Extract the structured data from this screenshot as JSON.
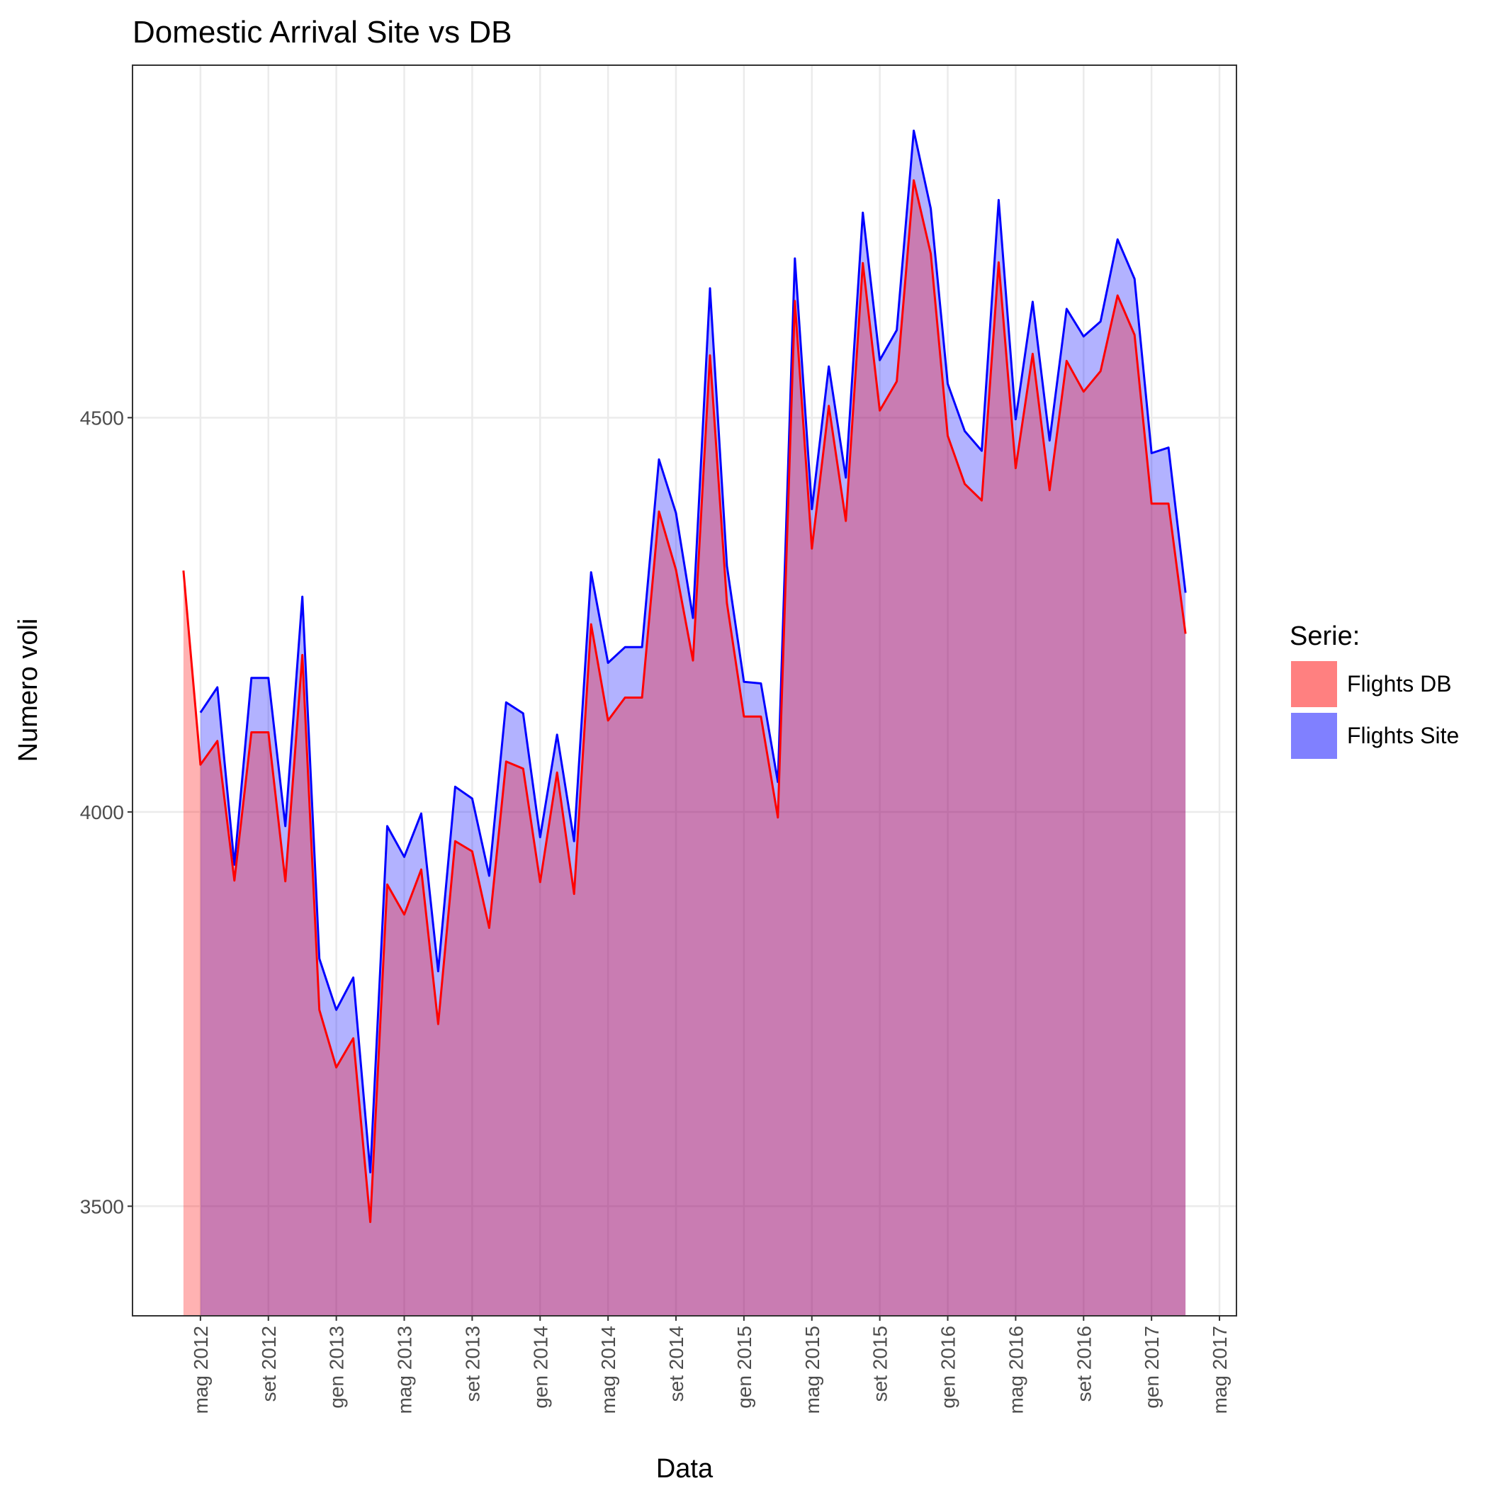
{
  "chart_data": {
    "type": "area",
    "title": "Domestic Arrival Site vs DB",
    "x_label": "Data",
    "y_label": "Numero voli",
    "legend_title": "Serie:",
    "legend": "right",
    "grid": true,
    "x": [
      "2012-04",
      "2012-05",
      "2012-06",
      "2012-07",
      "2012-08",
      "2012-09",
      "2012-10",
      "2012-11",
      "2012-12",
      "2013-01",
      "2013-02",
      "2013-03",
      "2013-04",
      "2013-05",
      "2013-06",
      "2013-07",
      "2013-08",
      "2013-09",
      "2013-10",
      "2013-11",
      "2013-12",
      "2014-01",
      "2014-02",
      "2014-03",
      "2014-04",
      "2014-05",
      "2014-06",
      "2014-07",
      "2014-08",
      "2014-09",
      "2014-10",
      "2014-11",
      "2014-12",
      "2015-01",
      "2015-02",
      "2015-03",
      "2015-04",
      "2015-05",
      "2015-06",
      "2015-07",
      "2015-08",
      "2015-09",
      "2015-10",
      "2015-11",
      "2015-12",
      "2016-01",
      "2016-02",
      "2016-03",
      "2016-04",
      "2016-05",
      "2016-06",
      "2016-07",
      "2016-08",
      "2016-09",
      "2016-10",
      "2016-11",
      "2016-12",
      "2017-01",
      "2017-02",
      "2017-03"
    ],
    "series": [
      {
        "name": "Flights DB",
        "color": "red",
        "fill": "#ff8080",
        "values": [
          4306,
          4060,
          4090,
          3913,
          4101,
          4101,
          3912,
          4199,
          3749,
          3676,
          3713,
          3480,
          3908,
          3870,
          3927,
          3731,
          3963,
          3950,
          3853,
          4064,
          4055,
          3911,
          4050,
          3896,
          4238,
          4116,
          4145,
          4145,
          4381,
          4307,
          4192,
          4579,
          4265,
          4121,
          4121,
          3993,
          4648,
          4334,
          4515,
          4369,
          4696,
          4509,
          4546,
          4801,
          4708,
          4477,
          4416,
          4395,
          4697,
          4436,
          4581,
          4408,
          4572,
          4533,
          4559,
          4655,
          4605,
          4391,
          4391,
          4226
        ]
      },
      {
        "name": "Flights Site",
        "color": "blue",
        "fill": "#8080ff",
        "values": [
          null,
          4126,
          4158,
          3933,
          4170,
          4170,
          3982,
          4273,
          3814,
          3749,
          3790,
          3543,
          3982,
          3943,
          3998,
          3798,
          4032,
          4017,
          3919,
          4139,
          4125,
          3968,
          4098,
          3963,
          4304,
          4189,
          4209,
          4209,
          4447,
          4379,
          4246,
          4664,
          4312,
          4165,
          4163,
          4038,
          4702,
          4384,
          4565,
          4424,
          4760,
          4573,
          4611,
          4864,
          4765,
          4543,
          4483,
          4458,
          4776,
          4498,
          4647,
          4471,
          4638,
          4603,
          4622,
          4726,
          4676,
          4455,
          4462,
          4278
        ]
      }
    ],
    "xlim": [
      "2012-01",
      "2017-06"
    ],
    "xticks": [
      {
        "value": "2012-05",
        "label": "mag 2012"
      },
      {
        "value": "2012-09",
        "label": "set 2012"
      },
      {
        "value": "2013-01",
        "label": "gen 2013"
      },
      {
        "value": "2013-05",
        "label": "mag 2013"
      },
      {
        "value": "2013-09",
        "label": "set 2013"
      },
      {
        "value": "2014-01",
        "label": "gen 2014"
      },
      {
        "value": "2014-05",
        "label": "mag 2014"
      },
      {
        "value": "2014-09",
        "label": "set 2014"
      },
      {
        "value": "2015-01",
        "label": "gen 2015"
      },
      {
        "value": "2015-05",
        "label": "mag 2015"
      },
      {
        "value": "2015-09",
        "label": "set 2015"
      },
      {
        "value": "2016-01",
        "label": "gen 2016"
      },
      {
        "value": "2016-05",
        "label": "mag 2016"
      },
      {
        "value": "2016-09",
        "label": "set 2016"
      },
      {
        "value": "2017-01",
        "label": "gen 2017"
      },
      {
        "value": "2017-05",
        "label": "mag 2017"
      }
    ],
    "ylim": [
      3361,
      4947
    ],
    "yticks": [
      3500,
      4000,
      4500
    ]
  }
}
